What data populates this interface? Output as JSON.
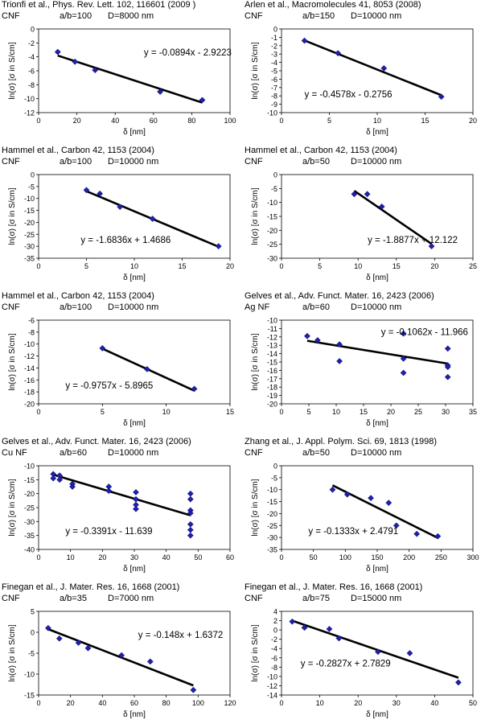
{
  "chart_data": [
    {
      "type": "scatter",
      "title": "Trionfi et al., Phys. Rev. Lett. 102, 116601 (2009 )",
      "material": "CNF",
      "aspect": "a/b=100",
      "diameter": "D=8000 nm",
      "xlabel": "δ [nm]",
      "ylabel": "ln(σ) [σ in S/cm]",
      "xlim": [
        0,
        100
      ],
      "xticks": [
        0,
        20,
        40,
        60,
        80,
        100
      ],
      "ylim": [
        -12,
        0
      ],
      "yticks": [
        0,
        -2,
        -4,
        -6,
        -8,
        -10,
        -12
      ],
      "points": [
        [
          10,
          -3.3
        ],
        [
          19,
          -4.7
        ],
        [
          29.5,
          -5.9
        ],
        [
          63.5,
          -9
        ],
        [
          85.5,
          -10.2
        ]
      ],
      "fit": {
        "slope": -0.0894,
        "intercept": -2.9223,
        "x_range": [
          10,
          85.5
        ]
      },
      "equation": "y = -0.0894x - 2.9223"
    },
    {
      "type": "scatter",
      "title": "Arlen et al., Macromolecules 41, 8053 (2008)",
      "material": "CNF",
      "aspect": "a/b=150",
      "diameter": "D=10000 nm",
      "xlabel": "δ [nm]",
      "ylabel": "ln(σ) [σ in S/cm]",
      "xlim": [
        0,
        20
      ],
      "xticks": [
        0,
        5,
        10,
        15,
        20
      ],
      "ylim": [
        -10,
        0
      ],
      "yticks": [
        0,
        -1,
        -2,
        -3,
        -4,
        -5,
        -6,
        -7,
        -8,
        -9,
        -10
      ],
      "points": [
        [
          2.4,
          -1.4
        ],
        [
          5.9,
          -2.9
        ],
        [
          10.7,
          -4.7
        ],
        [
          16.7,
          -8.1
        ]
      ],
      "fit": {
        "slope": -0.4578,
        "intercept": -0.2756,
        "x_range": [
          2.4,
          16.7
        ]
      },
      "equation": "y = -0.4578x - 0.2756"
    },
    {
      "type": "scatter",
      "title": "Hammel et al., Carbon 42, 1153 (2004)",
      "material": "CNF",
      "aspect": "a/b=100",
      "diameter": "D=10000 nm",
      "xlabel": "δ [nm]",
      "ylabel": "ln(σ) [σ in S/cm]",
      "xlim": [
        0,
        20
      ],
      "xticks": [
        0,
        5,
        10,
        15,
        20
      ],
      "ylim": [
        -35,
        0
      ],
      "yticks": [
        0,
        -5,
        -10,
        -15,
        -20,
        -25,
        -30,
        -35
      ],
      "points": [
        [
          5,
          -6.5
        ],
        [
          6.4,
          -8
        ],
        [
          8.5,
          -13.5
        ],
        [
          11.9,
          -18.5
        ],
        [
          18.8,
          -30
        ]
      ],
      "fit": {
        "slope": -1.6836,
        "intercept": 1.4686,
        "x_range": [
          5,
          18.8
        ]
      },
      "equation": "y = -1.6836x + 1.4686"
    },
    {
      "type": "scatter",
      "title": "Hammel et al., Carbon 42, 1153 (2004)",
      "material": "CNF",
      "aspect": "a/b=50",
      "diameter": "D=10000 nm",
      "xlabel": "δ [nm]",
      "ylabel": "ln(σ) [σ in S/cm]",
      "xlim": [
        0,
        25
      ],
      "xticks": [
        0,
        5,
        10,
        15,
        20,
        25
      ],
      "ylim": [
        -30,
        0
      ],
      "yticks": [
        0,
        -5,
        -10,
        -15,
        -20,
        -25,
        -30
      ],
      "points": [
        [
          9.5,
          -7
        ],
        [
          11.2,
          -7
        ],
        [
          13.1,
          -11.5
        ],
        [
          19.6,
          -25.7
        ]
      ],
      "fit": {
        "slope": -1.8877,
        "intercept": 12.122,
        "x_range": [
          9.5,
          19.6
        ]
      },
      "equation": "y = -1.8877x + 12.122"
    },
    {
      "type": "scatter",
      "title": "Hammel et al., Carbon 42, 1153 (2004)",
      "material": "CNF",
      "aspect": "a/b=100",
      "diameter": "D=10000 nm",
      "xlabel": "δ [nm]",
      "ylabel": "ln(σ) [σ in S/cm]",
      "xlim": [
        0,
        15
      ],
      "xticks": [
        0,
        5,
        10,
        15
      ],
      "ylim": [
        -20,
        -6
      ],
      "yticks": [
        -6,
        -8,
        -10,
        -12,
        -14,
        -16,
        -18,
        -20
      ],
      "points": [
        [
          5,
          -10.7
        ],
        [
          8.5,
          -14.2
        ],
        [
          12.2,
          -17.5
        ]
      ],
      "fit": {
        "slope": -0.9757,
        "intercept": -5.8965,
        "x_range": [
          5,
          12.2
        ]
      },
      "equation": "y = -0.9757x - 5.8965"
    },
    {
      "type": "scatter",
      "title": "Gelves et al., Adv. Funct. Mater. 16, 2423 (2006)",
      "material": "Ag NF",
      "aspect": "a/b=60",
      "diameter": "D=10000 nm",
      "xlabel": "δ [nm]",
      "ylabel": "ln(σ) [σ in S/cm]",
      "xlim": [
        0,
        35
      ],
      "xticks": [
        0,
        5,
        10,
        15,
        20,
        25,
        30,
        35
      ],
      "ylim": [
        -20,
        -10
      ],
      "yticks": [
        -10,
        -11,
        -12,
        -13,
        -14,
        -15,
        -16,
        -17,
        -18,
        -19,
        -20
      ],
      "points": [
        [
          4.7,
          -11.9
        ],
        [
          6.6,
          -12.4
        ],
        [
          10.6,
          -12.9
        ],
        [
          10.6,
          -14.9
        ],
        [
          22.3,
          -11.6
        ],
        [
          22.3,
          -14.6
        ],
        [
          22.3,
          -16.3
        ],
        [
          30.4,
          -13.4
        ],
        [
          30.4,
          -15.4
        ],
        [
          30.4,
          -15.6
        ],
        [
          30.4,
          -16.8
        ]
      ],
      "fit": {
        "slope": -0.1062,
        "intercept": -11.966,
        "x_range": [
          4.7,
          30.4
        ]
      },
      "equation": "y = -0.1062x - 11.966"
    },
    {
      "type": "scatter",
      "title": "Gelves et al., Adv. Funct. Mater. 16, 2423 (2006)",
      "material": "Cu NF",
      "aspect": "a/b=60",
      "diameter": "D=10000 nm",
      "xlabel": "δ [nm]",
      "ylabel": "ln(σ) [σ in S/cm]",
      "xlim": [
        0,
        60
      ],
      "xticks": [
        0,
        10,
        20,
        30,
        40,
        50,
        60
      ],
      "ylim": [
        -40,
        -10
      ],
      "yticks": [
        -10,
        -15,
        -20,
        -25,
        -30,
        -35,
        -40
      ],
      "points": [
        [
          4.6,
          -13
        ],
        [
          4.6,
          -14.5
        ],
        [
          6.6,
          -13.5
        ],
        [
          6.6,
          -15
        ],
        [
          10.6,
          -16.5
        ],
        [
          10.6,
          -17.5
        ],
        [
          22,
          -17.5
        ],
        [
          22,
          -19
        ],
        [
          30.5,
          -19.5
        ],
        [
          30.5,
          -22
        ],
        [
          30.5,
          -24
        ],
        [
          30.5,
          -25.5
        ],
        [
          47.6,
          -20
        ],
        [
          47.6,
          -22
        ],
        [
          47.6,
          -26
        ],
        [
          47.6,
          -27
        ],
        [
          47.6,
          -31
        ],
        [
          47.6,
          -33
        ],
        [
          47.6,
          -35
        ]
      ],
      "fit": {
        "slope": -0.3391,
        "intercept": -11.639,
        "x_range": [
          4.6,
          47.6
        ]
      },
      "equation": "y = -0.3391x - 11.639"
    },
    {
      "type": "scatter",
      "title": "Zhang et al., J. Appl. Polym. Sci. 69, 1813 (1998)",
      "material": "CNF",
      "aspect": "a/b=50",
      "diameter": "D=10000 nm",
      "xlabel": "δ [nm]",
      "ylabel": "ln(σ) [σ in S/cm]",
      "xlim": [
        0,
        300
      ],
      "xticks": [
        0,
        50,
        100,
        150,
        200,
        250,
        300
      ],
      "ylim": [
        -35,
        0
      ],
      "yticks": [
        0,
        -5,
        -10,
        -15,
        -20,
        -25,
        -30,
        -35
      ],
      "points": [
        [
          80,
          -10
        ],
        [
          103,
          -12
        ],
        [
          140,
          -13.5
        ],
        [
          168,
          -15.5
        ],
        [
          180,
          -25
        ],
        [
          212,
          -28.5
        ],
        [
          245,
          -29.5
        ]
      ],
      "fit": {
        "slope": -0.1333,
        "intercept": 2.4791,
        "x_range": [
          80,
          245
        ]
      },
      "equation": "y = -0.1333x + 2.4791"
    },
    {
      "type": "scatter",
      "title": "Finegan et al., J. Mater. Res. 16, 1668 (2001)",
      "material": "CNF",
      "aspect": "a/b=35",
      "diameter": "D=7000 nm",
      "xlabel": "δ [nm]",
      "ylabel": "ln(σ) [σ in S/cm]",
      "xlim": [
        0,
        120
      ],
      "xticks": [
        0,
        20,
        40,
        60,
        80,
        100,
        120
      ],
      "ylim": [
        -15,
        5
      ],
      "yticks": [
        5,
        0,
        -5,
        -10,
        -15
      ],
      "points": [
        [
          6,
          1
        ],
        [
          13,
          -1.5
        ],
        [
          25,
          -2.5
        ],
        [
          31,
          -3.8
        ],
        [
          52,
          -5.5
        ],
        [
          70,
          -7
        ],
        [
          97,
          -13.8
        ]
      ],
      "fit": {
        "slope": -0.148,
        "intercept": 1.6372,
        "x_range": [
          6,
          97
        ]
      },
      "equation": "y = -0.148x + 1.6372"
    },
    {
      "type": "scatter",
      "title": "Finegan et al., J. Mater. Res. 16, 1668 (2001)",
      "material": "CNF",
      "aspect": "a/b=75",
      "diameter": "D=15000 nm",
      "xlabel": "δ [nm]",
      "ylabel": "ln(σ) [σ in S/cm]",
      "xlim": [
        0,
        50
      ],
      "xticks": [
        0,
        10,
        20,
        30,
        40,
        50
      ],
      "ylim": [
        -14,
        4
      ],
      "yticks": [
        4,
        2,
        0,
        -2,
        -4,
        -6,
        -8,
        -10,
        -12,
        -14
      ],
      "points": [
        [
          2.8,
          1.8
        ],
        [
          6,
          0.5
        ],
        [
          12.5,
          0.2
        ],
        [
          15,
          -1.8
        ],
        [
          25.2,
          -4.7
        ],
        [
          33.5,
          -5
        ],
        [
          46.2,
          -11.3
        ]
      ],
      "fit": {
        "slope": -0.2827,
        "intercept": 2.7829,
        "x_range": [
          2.8,
          46.2
        ]
      },
      "equation": "y = -0.2827x + 2.7829"
    }
  ]
}
